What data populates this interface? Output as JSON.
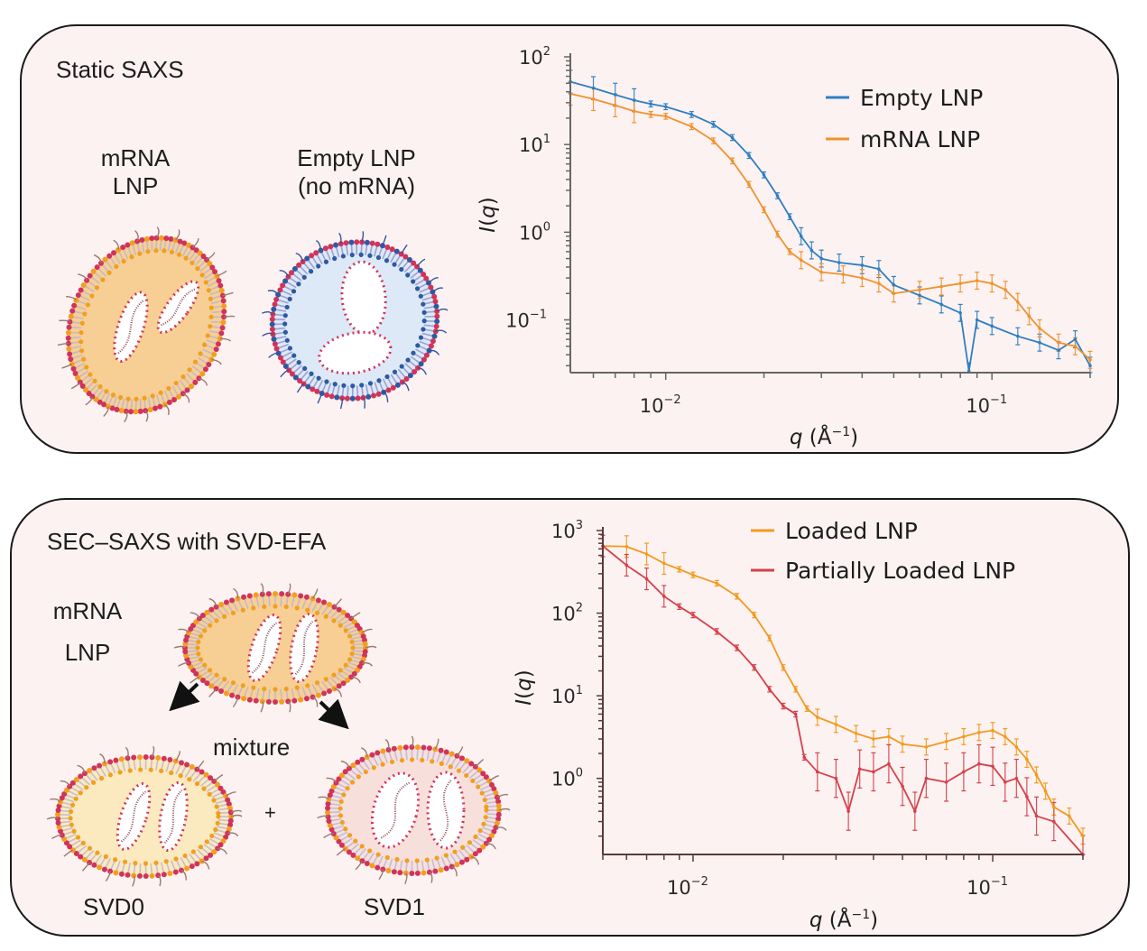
{
  "panels": {
    "top": {
      "title": "Static SAXS",
      "particles": [
        {
          "label_line1": "mRNA",
          "label_line2": "LNP",
          "kind": "mRNA-loaded",
          "shell_color": "#f5c98a",
          "head_color": "#d1335a",
          "accent_color": "#f0a020"
        },
        {
          "label_line1": "Empty LNP",
          "label_line2": "(no mRNA)",
          "kind": "empty",
          "shell_color": "#dbe8f5",
          "head_color": "#d1335a",
          "accent_color": "#3a62a8"
        }
      ]
    },
    "bottom": {
      "title": "SEC–SAXS with SVD-EFA",
      "source_label_line1": "mRNA",
      "source_label_line2": "LNP",
      "mixture_label": "mixture",
      "plus_label": "+",
      "components": [
        {
          "label": "SVD0"
        },
        {
          "label": "SVD1"
        }
      ],
      "shell_color": "#f5c98a",
      "head_color": "#d1335a",
      "accent_color": "#f0a020"
    }
  },
  "chart_data": [
    {
      "type": "line",
      "scale": "log-log",
      "title": "",
      "xlabel": "q (Å⁻¹)",
      "ylabel": "I(q)",
      "xlim": [
        0.0051,
        0.2
      ],
      "ylim": [
        0.025,
        100
      ],
      "x_tick_labels": [
        {
          "exp": "-2",
          "value": 0.01
        },
        {
          "exp": "-1",
          "value": 0.1
        }
      ],
      "y_tick_labels": [
        {
          "exp": "2",
          "value": 100
        },
        {
          "exp": "1",
          "value": 10
        },
        {
          "exp": "0",
          "value": 1
        },
        {
          "exp": "-1",
          "value": 0.1
        }
      ],
      "grid": false,
      "error_bars": true,
      "legend_position": "top-right",
      "series": [
        {
          "name": "Empty LNP",
          "color": "#2f7fc1",
          "x": [
            0.0051,
            0.006,
            0.007,
            0.008,
            0.009,
            0.01,
            0.012,
            0.014,
            0.016,
            0.018,
            0.02,
            0.022,
            0.024,
            0.026,
            0.028,
            0.03,
            0.034,
            0.04,
            0.045,
            0.05,
            0.06,
            0.07,
            0.08,
            0.085,
            0.09,
            0.1,
            0.12,
            0.14,
            0.16,
            0.18,
            0.2
          ],
          "y": [
            52,
            44,
            37,
            32,
            29,
            27,
            22,
            17,
            12,
            7.5,
            4.5,
            2.6,
            1.5,
            0.9,
            0.62,
            0.5,
            0.45,
            0.42,
            0.38,
            0.25,
            0.19,
            0.15,
            0.12,
            0.026,
            0.1,
            0.085,
            0.065,
            0.055,
            0.045,
            0.06,
            0.03
          ]
        },
        {
          "name": "mRNA LNP",
          "color": "#f0922e",
          "x": [
            0.0051,
            0.006,
            0.007,
            0.008,
            0.009,
            0.01,
            0.012,
            0.014,
            0.016,
            0.018,
            0.02,
            0.022,
            0.024,
            0.026,
            0.03,
            0.035,
            0.04,
            0.045,
            0.05,
            0.06,
            0.07,
            0.08,
            0.09,
            0.1,
            0.11,
            0.12,
            0.13,
            0.14,
            0.16,
            0.18,
            0.2
          ],
          "y": [
            38,
            33,
            28,
            24,
            22,
            21,
            16,
            11,
            6.5,
            3.5,
            1.8,
            0.95,
            0.6,
            0.48,
            0.35,
            0.33,
            0.3,
            0.26,
            0.2,
            0.22,
            0.24,
            0.26,
            0.28,
            0.26,
            0.22,
            0.16,
            0.11,
            0.08,
            0.055,
            0.05,
            0.035
          ]
        }
      ]
    },
    {
      "type": "line",
      "scale": "log-log",
      "title": "",
      "xlabel": "q (Å⁻¹)",
      "ylabel": "I(q)",
      "xlim": [
        0.005,
        0.2
      ],
      "ylim": [
        0.12,
        1000
      ],
      "x_tick_labels": [
        {
          "exp": "-2",
          "value": 0.01
        },
        {
          "exp": "-1",
          "value": 0.1
        }
      ],
      "y_tick_labels": [
        {
          "exp": "3",
          "value": 1000
        },
        {
          "exp": "2",
          "value": 100
        },
        {
          "exp": "1",
          "value": 10
        },
        {
          "exp": "0",
          "value": 1
        }
      ],
      "grid": false,
      "error_bars": true,
      "legend_position": "top-right",
      "series": [
        {
          "name": "Loaded LNP",
          "color": "#f39a1e",
          "x": [
            0.005,
            0.006,
            0.007,
            0.008,
            0.009,
            0.01,
            0.012,
            0.014,
            0.016,
            0.018,
            0.02,
            0.022,
            0.024,
            0.026,
            0.03,
            0.035,
            0.04,
            0.045,
            0.05,
            0.06,
            0.07,
            0.08,
            0.09,
            0.1,
            0.11,
            0.12,
            0.13,
            0.14,
            0.15,
            0.16,
            0.18,
            0.2
          ],
          "y": [
            650,
            640,
            520,
            400,
            340,
            290,
            230,
            160,
            95,
            50,
            22,
            12,
            7,
            5.5,
            4.5,
            3.5,
            3,
            3.2,
            2.6,
            2.4,
            2.8,
            3.2,
            3.6,
            3.8,
            3.2,
            2.4,
            1.7,
            1.1,
            0.7,
            0.45,
            0.35,
            0.2
          ]
        },
        {
          "name": "Partially Loaded LNP",
          "color": "#d6404a",
          "x": [
            0.005,
            0.006,
            0.007,
            0.008,
            0.009,
            0.01,
            0.012,
            0.014,
            0.016,
            0.018,
            0.02,
            0.022,
            0.0235,
            0.026,
            0.03,
            0.033,
            0.036,
            0.04,
            0.045,
            0.05,
            0.055,
            0.06,
            0.07,
            0.08,
            0.09,
            0.1,
            0.11,
            0.12,
            0.13,
            0.14,
            0.16,
            0.2
          ],
          "y": [
            650,
            380,
            260,
            160,
            120,
            95,
            60,
            38,
            22,
            12,
            7.5,
            6,
            1.8,
            1.2,
            1.0,
            0.4,
            1.3,
            1.2,
            1.5,
            0.8,
            0.4,
            1.0,
            0.9,
            1.2,
            1.5,
            1.4,
            0.9,
            1.0,
            0.6,
            0.35,
            0.3,
            0.12
          ]
        }
      ]
    }
  ]
}
